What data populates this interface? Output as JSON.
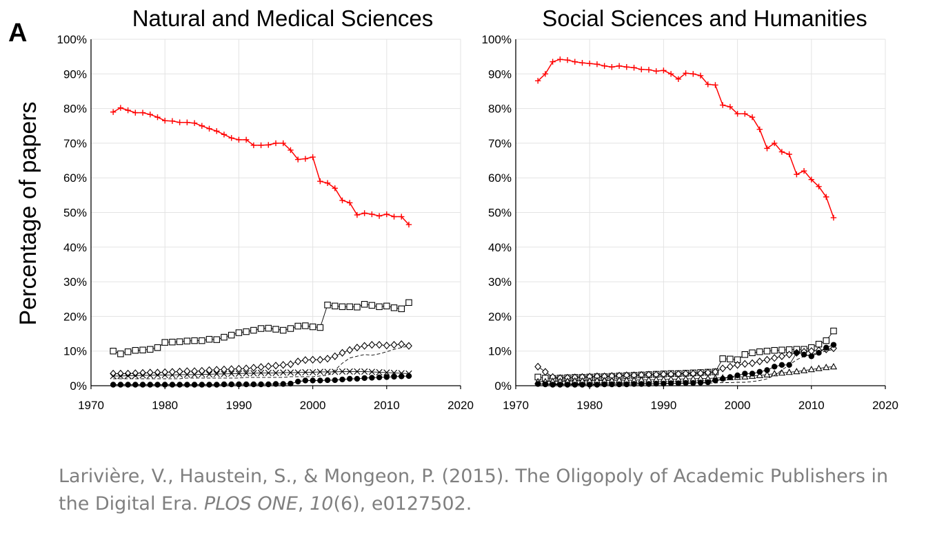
{
  "panel_letter": "A",
  "y_axis_label": "Percentage of papers",
  "citation": {
    "authors_year": "Larivière, V., Haustein, S., & Mongeon, P. (2015). The Oligopoly of Academic Publishers in the Digital Era. ",
    "journal": "PLOS ONE",
    "sep1": ", ",
    "volume": "10",
    "issue": "(6), e0127502."
  },
  "colors": {
    "other": "#ff0000",
    "publishers": "#000000",
    "grid": "#e3e3e3"
  },
  "chart_data": [
    {
      "type": "line",
      "title": "Natural and Medical Sciences",
      "xlim": [
        1970,
        2020
      ],
      "ylim": [
        0,
        100
      ],
      "xticks": [
        "1970",
        "1980",
        "1990",
        "2000",
        "2010",
        "2020"
      ],
      "yticks": [
        "0%",
        "10%",
        "20%",
        "30%",
        "40%",
        "50%",
        "60%",
        "70%",
        "80%",
        "90%",
        "100%"
      ],
      "grid": true,
      "x": [
        1973,
        1974,
        1975,
        1976,
        1977,
        1978,
        1979,
        1980,
        1981,
        1982,
        1983,
        1984,
        1985,
        1986,
        1987,
        1988,
        1989,
        1990,
        1991,
        1992,
        1993,
        1994,
        1995,
        1996,
        1997,
        1998,
        1999,
        2000,
        2001,
        2002,
        2003,
        2004,
        2005,
        2006,
        2007,
        2008,
        2009,
        2010,
        2011,
        2012,
        2013
      ],
      "series": [
        {
          "marker": "plus",
          "color": "#ff0000",
          "values": [
            79,
            80.2,
            79.5,
            78.8,
            78.8,
            78.3,
            77.5,
            76.5,
            76.4,
            76,
            76,
            75.8,
            75,
            74.2,
            73.5,
            72.5,
            71.5,
            71,
            71,
            69.4,
            69.4,
            69.5,
            70,
            70,
            68,
            65.3,
            65.5,
            66,
            59,
            58.5,
            57,
            53.5,
            52.8,
            49.3,
            49.8,
            49.5,
            49,
            49.5,
            48.8,
            48.8,
            46.5
          ]
        },
        {
          "marker": "square",
          "color": "#000000",
          "values": [
            10,
            9.2,
            9.8,
            10.2,
            10.3,
            10.5,
            11,
            12.5,
            12.6,
            12.7,
            12.9,
            13,
            13,
            13.4,
            13.3,
            14,
            14.6,
            15.3,
            15.6,
            16,
            16.5,
            16.6,
            16.3,
            16,
            16.5,
            17.2,
            17.3,
            17,
            16.8,
            23.3,
            23,
            22.8,
            22.8,
            22.7,
            23.5,
            23.2,
            22.8,
            23,
            22.5,
            22.2,
            24
          ]
        },
        {
          "marker": "diamond",
          "color": "#000000",
          "values": [
            3.5,
            3.5,
            3.5,
            3.6,
            3.7,
            3.8,
            3.8,
            3.9,
            4,
            4.1,
            4.2,
            4.2,
            4.3,
            4.5,
            4.6,
            4.7,
            4.8,
            4.9,
            5,
            5.2,
            5.4,
            5.6,
            5.8,
            6,
            6.2,
            7,
            7.4,
            7.5,
            7.5,
            7.8,
            8.5,
            9.5,
            10.3,
            11,
            11.5,
            11.8,
            11.8,
            11.6,
            11.8,
            12,
            11.5
          ]
        },
        {
          "marker": "cross",
          "color": "#000000",
          "values": [
            2.8,
            2.8,
            2.9,
            2.9,
            3,
            3,
            3.1,
            3.1,
            3.1,
            3.2,
            3.2,
            3.2,
            3.3,
            3.3,
            3.4,
            3.4,
            3.5,
            3.5,
            3.6,
            3.6,
            3.7,
            3.7,
            3.7,
            3.8,
            3.8,
            3.8,
            3.9,
            3.9,
            4,
            4,
            4,
            4.1,
            4.1,
            4.1,
            4.1,
            4,
            3.9,
            3.8,
            3.7,
            3.6,
            3.5
          ]
        },
        {
          "marker": "none",
          "dashed": true,
          "color": "#000000",
          "values": [
            2,
            2,
            2,
            2,
            2,
            2,
            2,
            2,
            2,
            2,
            2.2,
            2.2,
            2.2,
            2.2,
            2.2,
            2.2,
            2.2,
            2.2,
            2.4,
            2.4,
            2.4,
            2.4,
            2.4,
            2.4,
            2.6,
            2.6,
            2.6,
            2.6,
            2.8,
            3,
            4.5,
            6.5,
            8,
            8.5,
            9,
            8.8,
            9.2,
            9.8,
            10.5,
            11,
            11.5
          ]
        },
        {
          "marker": "circle",
          "color": "#000000",
          "values": [
            0.3,
            0.3,
            0.3,
            0.3,
            0.3,
            0.3,
            0.3,
            0.3,
            0.3,
            0.3,
            0.3,
            0.3,
            0.3,
            0.3,
            0.3,
            0.4,
            0.4,
            0.4,
            0.4,
            0.4,
            0.4,
            0.4,
            0.5,
            0.5,
            0.6,
            1.2,
            1.5,
            1.5,
            1.5,
            1.6,
            1.6,
            1.8,
            2,
            2,
            2.2,
            2.3,
            2.4,
            2.5,
            2.6,
            2.7,
            2.8
          ]
        }
      ]
    },
    {
      "type": "line",
      "title": "Social Sciences and Humanities",
      "xlim": [
        1970,
        2020
      ],
      "ylim": [
        0,
        100
      ],
      "xticks": [
        "1970",
        "1980",
        "1990",
        "2000",
        "2010",
        "2020"
      ],
      "yticks": [
        "0%",
        "10%",
        "20%",
        "30%",
        "40%",
        "50%",
        "60%",
        "70%",
        "80%",
        "90%",
        "100%"
      ],
      "grid": true,
      "x": [
        1973,
        1974,
        1975,
        1976,
        1977,
        1978,
        1979,
        1980,
        1981,
        1982,
        1983,
        1984,
        1985,
        1986,
        1987,
        1988,
        1989,
        1990,
        1991,
        1992,
        1993,
        1994,
        1995,
        1996,
        1997,
        1998,
        1999,
        2000,
        2001,
        2002,
        2003,
        2004,
        2005,
        2006,
        2007,
        2008,
        2009,
        2010,
        2011,
        2012,
        2013
      ],
      "series": [
        {
          "marker": "plus",
          "color": "#ff0000",
          "values": [
            88,
            90,
            93.5,
            94.2,
            94,
            93.5,
            93.2,
            93,
            92.8,
            92.3,
            92,
            92.3,
            92,
            91.8,
            91.3,
            91.2,
            90.8,
            91,
            90,
            88.5,
            90.2,
            90,
            89.5,
            87,
            86.8,
            81,
            80.5,
            78.5,
            78.5,
            77.5,
            74,
            68.5,
            70,
            67.5,
            66.8,
            61,
            62,
            59.5,
            57.5,
            54.5,
            48.5
          ]
        },
        {
          "marker": "square",
          "color": "#000000",
          "values": [
            2.5,
            2.2,
            2.1,
            2.2,
            2.3,
            2.4,
            2.4,
            2.5,
            2.6,
            2.6,
            2.7,
            2.8,
            2.9,
            3,
            3.1,
            3.2,
            3.3,
            3.4,
            3.5,
            3.5,
            3.6,
            3.7,
            3.8,
            3.9,
            4,
            7.8,
            7.7,
            7.5,
            9,
            9.5,
            9.8,
            10,
            10.2,
            10.3,
            10.4,
            10.5,
            10.5,
            11,
            12,
            13,
            15.8
          ]
        },
        {
          "marker": "diamond",
          "color": "#000000",
          "values": [
            5.5,
            4,
            2.5,
            2.2,
            2.3,
            2.4,
            2.5,
            2.6,
            2.7,
            2.7,
            2.8,
            2.9,
            3,
            3,
            3.1,
            3.2,
            3.2,
            3.3,
            3.3,
            3.4,
            3.5,
            3.5,
            3.6,
            3.8,
            4,
            5,
            5.5,
            6,
            6.3,
            6.5,
            7,
            7.5,
            8,
            8.5,
            9,
            9.5,
            9.8,
            10,
            10.2,
            10.5,
            10.8
          ]
        },
        {
          "marker": "triangle",
          "color": "#000000",
          "values": [
            1.2,
            1.2,
            1.3,
            1.3,
            1.3,
            1.4,
            1.4,
            1.4,
            1.5,
            1.5,
            1.5,
            1.6,
            1.6,
            1.6,
            1.7,
            1.7,
            1.8,
            1.8,
            1.9,
            1.9,
            2,
            2,
            2.1,
            2.1,
            2.2,
            2.3,
            2.4,
            2.5,
            2.6,
            2.8,
            3,
            3.2,
            3.5,
            3.7,
            3.9,
            4.1,
            4.4,
            4.7,
            5,
            5.3,
            5.5
          ]
        },
        {
          "marker": "none",
          "dashed": true,
          "color": "#000000",
          "values": [
            0.5,
            0.5,
            0.5,
            0.5,
            0.5,
            0.5,
            0.5,
            0.5,
            0.5,
            0.5,
            0.5,
            0.6,
            0.6,
            0.6,
            0.6,
            0.6,
            0.6,
            0.7,
            0.7,
            0.7,
            0.7,
            0.7,
            0.8,
            0.8,
            0.8,
            0.9,
            0.9,
            1,
            1,
            1.2,
            1.5,
            2,
            3,
            4.5,
            6,
            7.5,
            8.5,
            9,
            9.5,
            10,
            10.5
          ]
        },
        {
          "marker": "circle",
          "color": "#000000",
          "values": [
            0.5,
            0.4,
            0.3,
            0.3,
            0.3,
            0.3,
            0.3,
            0.3,
            0.3,
            0.4,
            0.4,
            0.4,
            0.4,
            0.5,
            0.5,
            0.5,
            0.6,
            0.6,
            0.7,
            0.7,
            0.8,
            0.8,
            0.9,
            1,
            1.5,
            2,
            2.5,
            3,
            3.5,
            3.5,
            4,
            4.5,
            5.5,
            6,
            6,
            9.5,
            9,
            8.5,
            9.5,
            11,
            11.8
          ]
        }
      ]
    }
  ]
}
